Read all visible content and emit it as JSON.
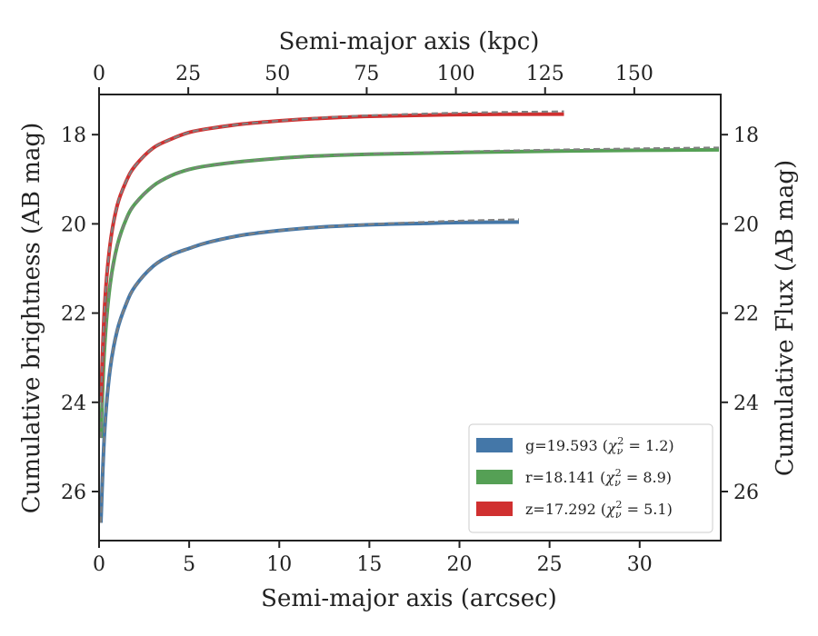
{
  "chart_data": {
    "type": "line",
    "x_label_bottom": "Semi-major axis (arcsec)",
    "x_label_top": "Semi-major axis (kpc)",
    "y_label_left": "Cumulative brightness (AB mag)",
    "y_label_right": "Cumulative Flux (AB mag)",
    "xlim": [
      0,
      34.5
    ],
    "ylim": [
      27.1,
      17.1
    ],
    "y_inverted": true,
    "x_ticks_bottom": [
      0,
      5,
      10,
      15,
      20,
      25,
      30
    ],
    "x_ticks_top": [
      0,
      25,
      50,
      75,
      100,
      125,
      150
    ],
    "y_ticks": [
      18,
      20,
      22,
      24,
      26
    ],
    "kpc_per_arcsec": 5.05,
    "grid": false,
    "legend_position": "lower-right",
    "legend_entries": [
      {
        "label": "g=19.593 (χ_ν² = 1.2)",
        "text": "g=19.593 ",
        "chi_value": "1.2",
        "color": "#4477a8"
      },
      {
        "label": "r=18.141 (χ_ν² = 8.9)",
        "text": "r=18.141 ",
        "chi_value": "8.9",
        "color": "#55a055"
      },
      {
        "label": "z=17.292 (χ_ν² = 5.1)",
        "text": "z=17.292 ",
        "chi_value": "5.1",
        "color": "#d03030"
      }
    ],
    "series": [
      {
        "name": "g",
        "color": "#4477a8",
        "model_color": "#808080",
        "x": [
          0.1,
          0.3,
          0.6,
          1.0,
          1.5,
          2.0,
          3.0,
          4.0,
          5.0,
          6.0,
          8.0,
          10.0,
          12.0,
          15.0,
          18.0,
          20.0,
          23.3
        ],
        "y": [
          26.7,
          24.7,
          23.3,
          22.4,
          21.8,
          21.4,
          20.95,
          20.7,
          20.55,
          20.42,
          20.25,
          20.15,
          20.08,
          20.02,
          19.99,
          19.97,
          19.96
        ],
        "model": [
          26.7,
          24.7,
          23.3,
          22.4,
          21.8,
          21.4,
          20.95,
          20.7,
          20.55,
          20.42,
          20.25,
          20.15,
          20.08,
          20.01,
          19.96,
          19.93,
          19.9
        ]
      },
      {
        "name": "r",
        "color": "#55a055",
        "model_color": "#808080",
        "x": [
          0.1,
          0.3,
          0.6,
          1.0,
          1.5,
          2.0,
          3.0,
          4.0,
          5.0,
          6.0,
          8.0,
          10.0,
          12.0,
          15.0,
          20.0,
          25.0,
          30.0,
          34.4
        ],
        "y": [
          24.8,
          22.8,
          21.4,
          20.5,
          19.9,
          19.55,
          19.15,
          18.92,
          18.78,
          18.7,
          18.6,
          18.53,
          18.48,
          18.44,
          18.4,
          18.37,
          18.35,
          18.34
        ],
        "model": [
          24.8,
          22.8,
          21.4,
          20.5,
          19.9,
          19.55,
          19.15,
          18.92,
          18.78,
          18.7,
          18.6,
          18.53,
          18.48,
          18.43,
          18.38,
          18.34,
          18.31,
          18.29
        ]
      },
      {
        "name": "z",
        "color": "#d03030",
        "model_color": "#808080",
        "x": [
          0.1,
          0.3,
          0.6,
          1.0,
          1.5,
          2.0,
          3.0,
          4.0,
          5.0,
          6.0,
          8.0,
          10.0,
          12.0,
          15.0,
          20.0,
          25.8
        ],
        "y": [
          24.0,
          21.9,
          20.5,
          19.6,
          19.05,
          18.7,
          18.3,
          18.1,
          17.95,
          17.87,
          17.76,
          17.69,
          17.64,
          17.59,
          17.55,
          17.54
        ],
        "model": [
          24.0,
          21.9,
          20.5,
          19.6,
          19.05,
          18.7,
          18.3,
          18.1,
          17.95,
          17.87,
          17.76,
          17.69,
          17.63,
          17.57,
          17.51,
          17.48
        ]
      }
    ]
  }
}
